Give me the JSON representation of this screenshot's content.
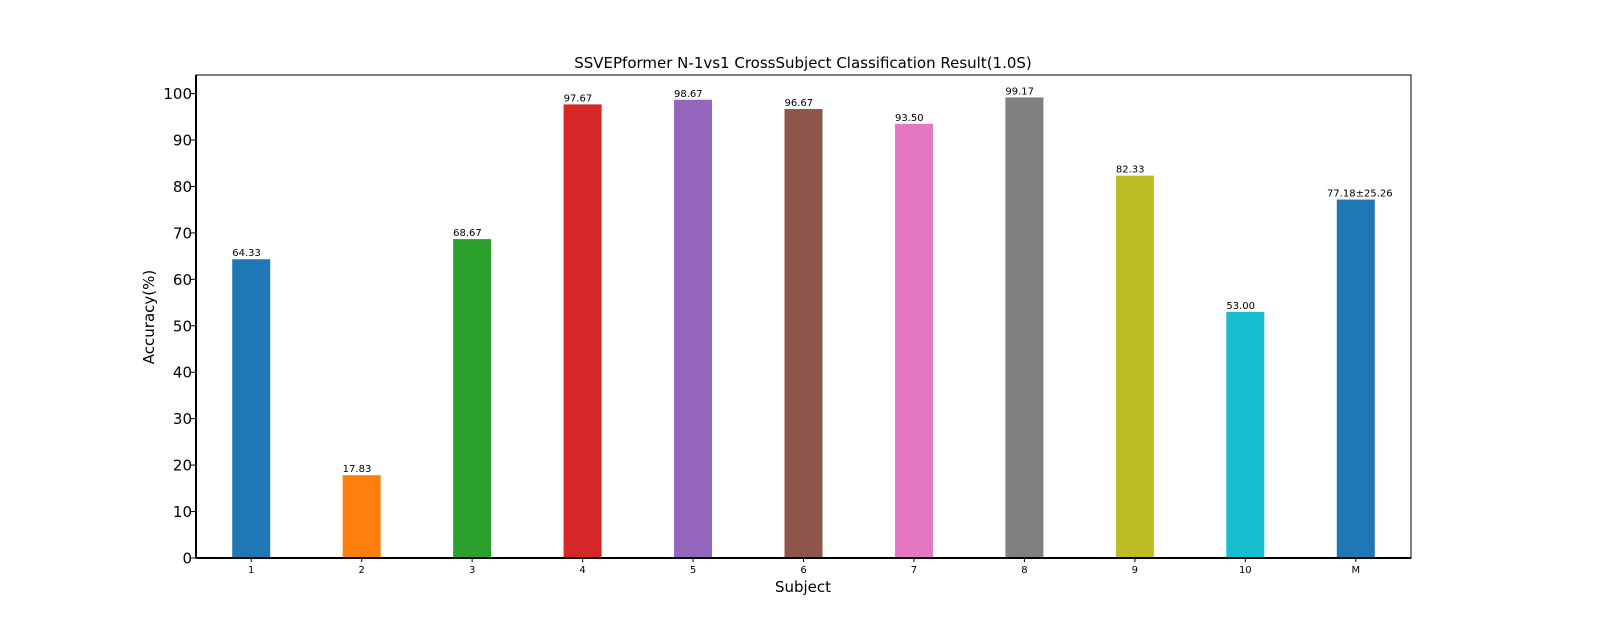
{
  "chart_data": {
    "type": "bar",
    "title": "SSVEPformer N-1vs1 CrossSubject Classification Result(1.0S)",
    "xlabel": "Subject",
    "ylabel": "Accuracy(%)",
    "ylim": [
      0,
      104
    ],
    "yticks": [
      0,
      10,
      20,
      30,
      40,
      50,
      60,
      70,
      80,
      90,
      100
    ],
    "grid": false,
    "categories": [
      "1",
      "2",
      "3",
      "4",
      "5",
      "6",
      "7",
      "8",
      "9",
      "10",
      "M"
    ],
    "values": [
      64.33,
      17.83,
      68.67,
      97.67,
      98.67,
      96.67,
      93.5,
      99.17,
      82.33,
      53.0,
      77.18
    ],
    "data_labels": [
      "64.33",
      "17.83",
      "68.67",
      "97.67",
      "98.67",
      "96.67",
      "93.50",
      "99.17",
      "82.33",
      "53.00",
      "77.18±25.26"
    ],
    "colors": [
      "#1f77b4",
      "#ff7f0e",
      "#2ca02c",
      "#d62728",
      "#9467bd",
      "#8c564b",
      "#e377c2",
      "#7f7f7f",
      "#bcbd22",
      "#17becf",
      "#1f77b4"
    ],
    "label_colors": [
      "#000000",
      "#000000",
      "#000000",
      "#000000",
      "#000000",
      "#000000",
      "#000000",
      "#000000",
      "#000000",
      "#000000",
      "#ff0000"
    ]
  }
}
